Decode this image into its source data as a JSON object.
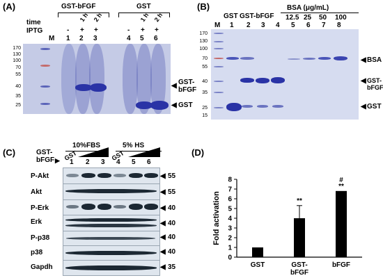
{
  "panels": {
    "a": "(A)",
    "b": "(B)",
    "c": "(C)",
    "d": "(D)"
  },
  "panel_a": {
    "group_gst_bfgf": "GST-bFGF",
    "group_gst": "GST",
    "row_time": "time",
    "row_iptg": "IPTG",
    "lanes": [
      "M",
      "1",
      "2",
      "3",
      "4",
      "5",
      "6"
    ],
    "times": [
      "1 h",
      "2 h",
      "1 h",
      "2 h"
    ],
    "iptg": [
      "-",
      "+",
      "+",
      "-",
      "+",
      "+"
    ],
    "mw": [
      "170",
      "130",
      "100",
      "70",
      "55",
      "40",
      "35",
      "25"
    ],
    "label_gst_bfgf": "GST-\nbFGF",
    "label_gst": "GST"
  },
  "panel_b": {
    "header_gst": "GST",
    "header_gst_bfgf": "GST-bFGF",
    "header_bsa": "BSA (μg/mL)",
    "bsa_conc": [
      "12.5",
      "25",
      "50",
      "100"
    ],
    "lanes": [
      "M",
      "1",
      "2",
      "3",
      "4",
      "5",
      "6",
      "7",
      "8"
    ],
    "mw": [
      "170",
      "130",
      "100",
      "70",
      "55",
      "40",
      "35",
      "25",
      "15"
    ],
    "label_bsa": "BSA",
    "label_gst_bfgf": "GST-bFGF",
    "label_gst": "GST"
  },
  "panel_c": {
    "cond1": "10%FBS",
    "cond2": "5% HS",
    "gst_bfgf": "GST-\nbFGF",
    "gst": "GST",
    "lanes": [
      "1",
      "2",
      "3",
      "4",
      "5",
      "6"
    ],
    "rows": [
      {
        "name": "P-Akt",
        "mw": "55"
      },
      {
        "name": "Akt",
        "mw": "55"
      },
      {
        "name": "P-Erk",
        "mw": "40"
      },
      {
        "name": "Erk",
        "mw": "40"
      },
      {
        "name": "P-p38",
        "mw": "40"
      },
      {
        "name": "p38",
        "mw": "40"
      },
      {
        "name": "Gapdh",
        "mw": "35"
      }
    ]
  },
  "chart_data": {
    "type": "bar",
    "categories": [
      "GST",
      "GST-bFGF",
      "bFGF"
    ],
    "category_labels": [
      [
        "GST"
      ],
      [
        "GST-",
        "bFGF"
      ],
      [
        "bFGF"
      ]
    ],
    "values": [
      1.0,
      4.0,
      6.8
    ],
    "error": [
      0,
      1.3,
      0
    ],
    "annotations": [
      "",
      "**",
      "#\n**"
    ],
    "ylabel": "Fold activation",
    "ylim": [
      0,
      8
    ],
    "yticks": [
      "0",
      "1",
      "2",
      "3",
      "4",
      "5",
      "6",
      "7",
      "8"
    ],
    "bar_color": "#000000"
  },
  "colors": {
    "gel_bg": "#c5cbe6",
    "gel_band": "#2a33a6",
    "blot_bg": "#dfe6ee",
    "blot_band": "#1c2833"
  }
}
